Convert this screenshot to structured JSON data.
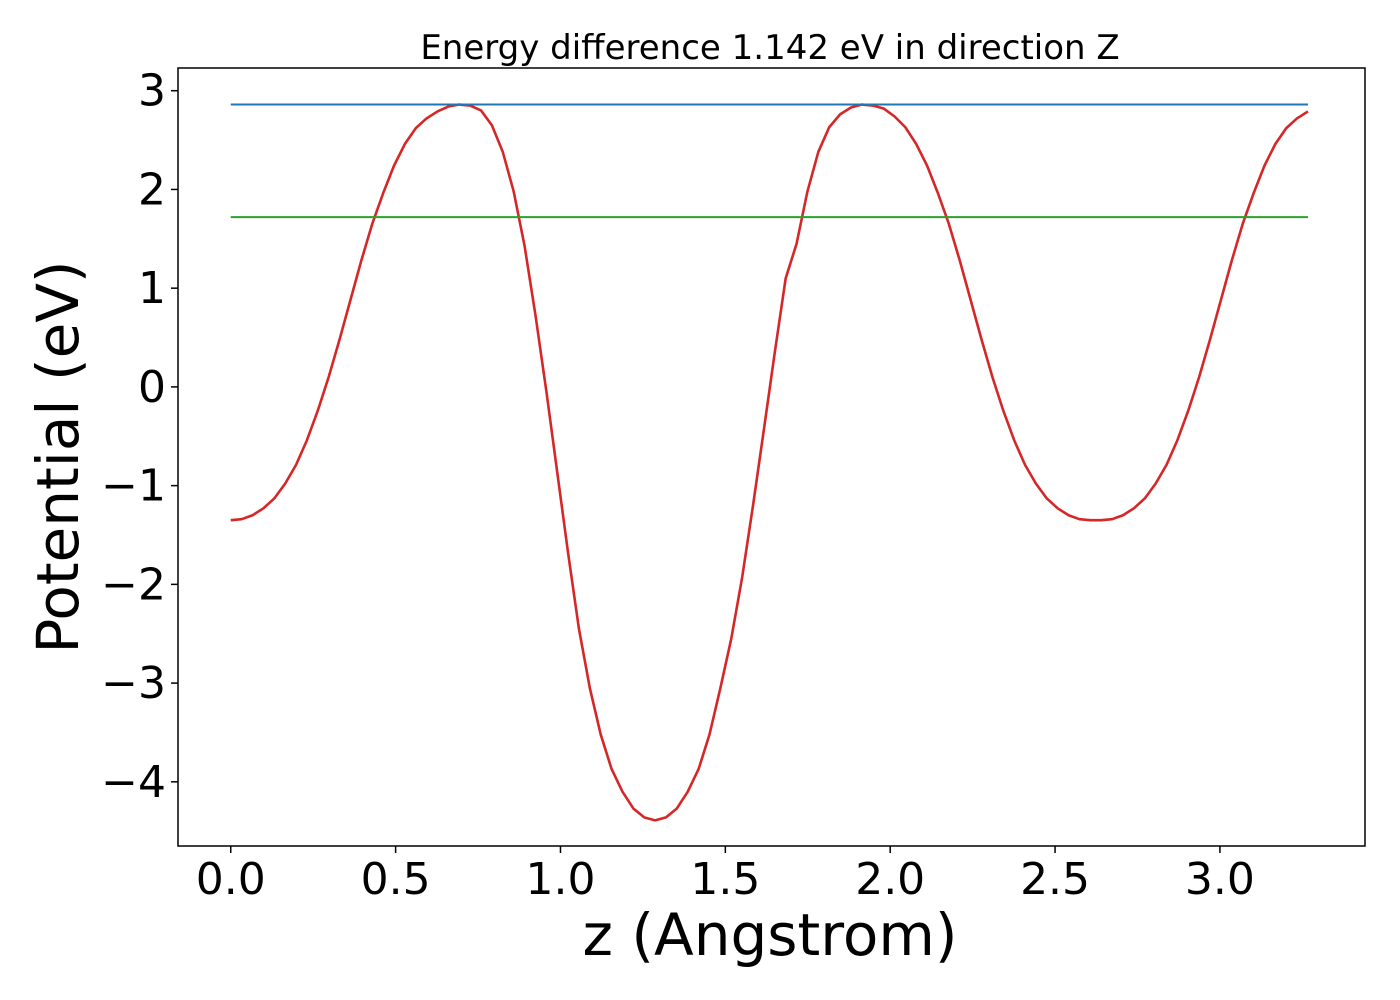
{
  "chart_data": {
    "type": "line",
    "title": "Energy difference 1.142 eV in direction Z",
    "xlabel": "z (Angstrom)",
    "ylabel": "Potential (eV)",
    "xlim": [
      -0.16,
      3.44
    ],
    "ylim": [
      -4.65,
      3.23
    ],
    "xticks": [
      0.0,
      0.5,
      1.0,
      1.5,
      2.0,
      2.5,
      3.0
    ],
    "xtick_labels": [
      "0.0",
      "0.5",
      "1.0",
      "1.5",
      "2.0",
      "2.5",
      "3.0"
    ],
    "yticks": [
      -4,
      -3,
      -2,
      -1,
      0,
      1,
      2,
      3
    ],
    "ytick_labels": [
      "−4",
      "−3",
      "−2",
      "−1",
      "0",
      "1",
      "2",
      "3"
    ],
    "grid": false,
    "series": [
      {
        "color": "#d62728",
        "x": [
          0.0,
          0.033,
          0.066,
          0.099,
          0.132,
          0.165,
          0.198,
          0.231,
          0.264,
          0.297,
          0.33,
          0.363,
          0.396,
          0.429,
          0.462,
          0.495,
          0.528,
          0.561,
          0.594,
          0.627,
          0.66,
          0.693,
          0.726,
          0.759,
          0.792,
          0.825,
          0.858,
          0.891,
          0.924,
          0.957,
          0.99,
          1.023,
          1.056,
          1.089,
          1.122,
          1.155,
          1.188,
          1.221,
          1.254,
          1.287,
          1.32,
          1.353,
          1.386,
          1.419,
          1.452,
          1.485,
          1.518,
          1.551,
          1.584,
          1.617,
          1.65,
          1.683,
          1.716,
          1.749,
          1.782,
          1.815,
          1.848,
          1.881,
          1.914,
          1.947,
          1.98,
          2.013,
          2.046,
          2.079,
          2.112,
          2.145,
          2.178,
          2.211,
          2.244,
          2.277,
          2.31,
          2.343,
          2.376,
          2.409,
          2.442,
          2.475,
          2.508,
          2.541,
          2.574,
          2.607,
          2.64,
          2.673,
          2.706,
          2.739,
          2.772,
          2.805,
          2.838,
          2.871,
          2.904,
          2.937,
          2.97,
          3.003,
          3.036,
          3.069,
          3.102,
          3.135,
          3.168,
          3.201,
          3.234,
          3.267
        ],
        "y": [
          -1.35,
          -1.34,
          -1.3,
          -1.23,
          -1.13,
          -0.98,
          -0.79,
          -0.54,
          -0.24,
          0.1,
          0.48,
          0.88,
          1.28,
          1.65,
          1.96,
          2.24,
          2.46,
          2.62,
          2.72,
          2.79,
          2.84,
          2.86,
          2.85,
          2.8,
          2.65,
          2.38,
          1.98,
          1.43,
          0.73,
          -0.04,
          -0.86,
          -1.68,
          -2.45,
          -3.05,
          -3.52,
          -3.87,
          -4.1,
          -4.27,
          -4.36,
          -4.39,
          -4.36,
          -4.27,
          -4.1,
          -3.87,
          -3.52,
          -3.05,
          -2.55,
          -1.93,
          -1.2,
          -0.43,
          0.35,
          1.1,
          1.45,
          1.98,
          2.38,
          2.63,
          2.76,
          2.83,
          2.86,
          2.85,
          2.82,
          2.74,
          2.63,
          2.46,
          2.24,
          1.96,
          1.65,
          1.28,
          0.88,
          0.48,
          0.1,
          -0.24,
          -0.54,
          -0.79,
          -0.98,
          -1.13,
          -1.23,
          -1.3,
          -1.34,
          -1.35,
          -1.35,
          -1.34,
          -1.3,
          -1.23,
          -1.13,
          -0.98,
          -0.79,
          -0.54,
          -0.24,
          0.1,
          0.48,
          0.88,
          1.28,
          1.65,
          1.96,
          2.24,
          2.46,
          2.62,
          2.72,
          2.79
        ]
      },
      {
        "color": "#1f77b4",
        "x": [
          0.0,
          3.267
        ],
        "y": [
          2.86,
          2.86
        ]
      },
      {
        "color": "#2ca02c",
        "x": [
          0.0,
          3.267
        ],
        "y": [
          1.72,
          1.72
        ]
      }
    ]
  }
}
